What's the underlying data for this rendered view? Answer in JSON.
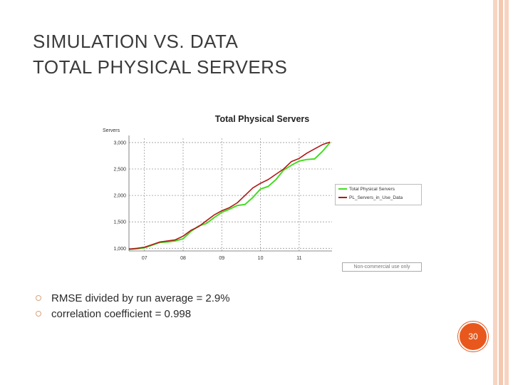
{
  "slide": {
    "title_line1": "SIMULATION VS. DATA",
    "title_line2": "TOTAL PHYSICAL SERVERS",
    "bullets": [
      "RMSE divided by run average = 2.9%",
      "correlation coefficient = 0.998"
    ],
    "page_number": "30",
    "watermark": "Non-commercial use only",
    "colors": {
      "accent": "#e8581c",
      "border": "#f4c7b0",
      "bullet": "#d9a27a",
      "sim_series": "#44dd22",
      "data_series": "#b01818"
    }
  },
  "chart_data": {
    "type": "line",
    "title": "Total Physical Servers",
    "ylabel": "Servers",
    "xlabel": "",
    "xlim": [
      6.6,
      11.85
    ],
    "ylim": [
      950,
      3080
    ],
    "x_ticks": [
      7,
      8,
      9,
      10,
      11
    ],
    "x_tick_labels": [
      "07",
      "08",
      "09",
      "10",
      "11"
    ],
    "y_ticks": [
      1000,
      1500,
      2000,
      2500,
      3000
    ],
    "y_tick_labels": [
      "1,000",
      "1,500",
      "2,000",
      "2,500",
      "3,000"
    ],
    "grid": true,
    "legend_position": "right",
    "x": [
      6.6,
      6.8,
      7.0,
      7.2,
      7.4,
      7.6,
      7.8,
      8.0,
      8.2,
      8.4,
      8.6,
      8.8,
      9.0,
      9.2,
      9.4,
      9.6,
      9.8,
      10.0,
      10.2,
      10.4,
      10.6,
      10.8,
      11.0,
      11.2,
      11.4,
      11.6,
      11.8
    ],
    "series": [
      {
        "name": "Total Physical Servers",
        "color": "#44dd22",
        "values": [
          980,
          990,
          1010,
          1060,
          1110,
          1120,
          1140,
          1180,
          1320,
          1420,
          1470,
          1580,
          1680,
          1740,
          1810,
          1830,
          1960,
          2120,
          2170,
          2300,
          2480,
          2570,
          2650,
          2680,
          2690,
          2830,
          3000
        ]
      },
      {
        "name": "PL_Servers_in_Use_Data",
        "color": "#b01818",
        "values": [
          985,
          1000,
          1020,
          1070,
          1120,
          1140,
          1160,
          1230,
          1340,
          1410,
          1520,
          1630,
          1710,
          1770,
          1860,
          2000,
          2140,
          2230,
          2300,
          2400,
          2500,
          2640,
          2700,
          2800,
          2880,
          2960,
          3010
        ]
      }
    ]
  }
}
